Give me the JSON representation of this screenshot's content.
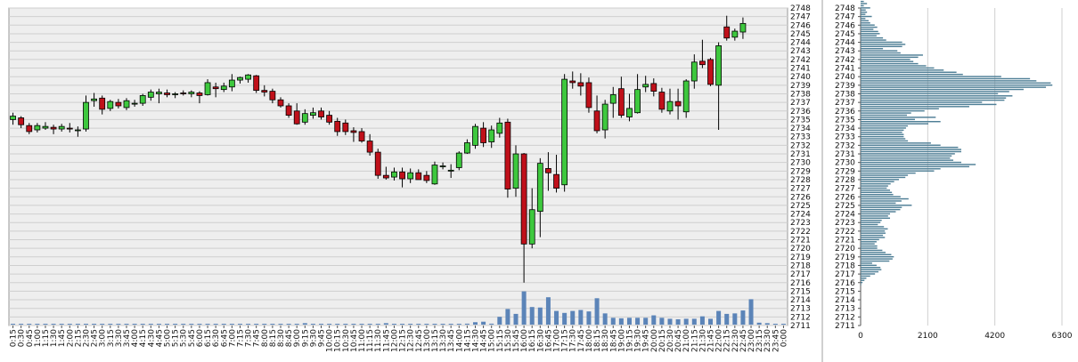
{
  "colors": {
    "up": "#3ec83e",
    "down": "#c0101a",
    "volume": "#5b84b8",
    "profile": "#4f7f96",
    "grid": "#cfcfcf",
    "plot_bg": "#eeeeee"
  },
  "chart_data": [
    {
      "type": "candlestick",
      "title": "",
      "xlabel": "",
      "ylabel": "",
      "ylim": [
        2711,
        2748
      ],
      "y_ticks": [
        2711,
        2712,
        2713,
        2714,
        2715,
        2716,
        2717,
        2718,
        2719,
        2720,
        2721,
        2722,
        2723,
        2724,
        2725,
        2726,
        2727,
        2728,
        2729,
        2730,
        2731,
        2732,
        2733,
        2734,
        2735,
        2736,
        2737,
        2738,
        2739,
        2740,
        2741,
        2742,
        2743,
        2744,
        2745,
        2746,
        2747,
        2748
      ],
      "grid": true,
      "x_tick_labels": [
        "0:15",
        "0:30",
        "0:45",
        "1:00",
        "1:15",
        "1:30",
        "1:45",
        "2:00",
        "2:15",
        "2:30",
        "2:45",
        "3:00",
        "3:15",
        "3:30",
        "3:45",
        "4:00",
        "4:15",
        "4:30",
        "4:45",
        "5:00",
        "5:15",
        "5:30",
        "5:45",
        "6:00",
        "6:15",
        "6:30",
        "6:45",
        "7:00",
        "7:15",
        "7:30",
        "7:45",
        "8:00",
        "8:15",
        "8:30",
        "8:45",
        "9:00",
        "9:15",
        "9:30",
        "9:45",
        "10:00",
        "10:15",
        "10:30",
        "10:45",
        "11:00",
        "11:15",
        "11:30",
        "11:45",
        "12:00",
        "12:15",
        "12:30",
        "12:45",
        "13:00",
        "13:15",
        "13:30",
        "13:45",
        "14:00",
        "14:15",
        "14:30",
        "14:45",
        "15:00",
        "15:15",
        "15:30",
        "15:45",
        "16:00",
        "16:15",
        "16:30",
        "16:45",
        "17:00",
        "17:15",
        "17:30",
        "17:45",
        "18:00",
        "18:15",
        "18:30",
        "18:45",
        "19:00",
        "19:15",
        "19:30",
        "19:45",
        "20:00",
        "20:15",
        "20:30",
        "20:45",
        "21:00",
        "21:15",
        "21:30",
        "21:45",
        "22:00",
        "22:15",
        "22:30",
        "22:45",
        "23:00",
        "23:15",
        "23:30",
        "23:45",
        "0:00"
      ],
      "candles": [
        {
          "o": 2735.0,
          "h": 2735.8,
          "l": 2734.4,
          "c": 2735.4
        },
        {
          "o": 2735.2,
          "h": 2735.4,
          "l": 2734.0,
          "c": 2734.4
        },
        {
          "o": 2734.3,
          "h": 2734.6,
          "l": 2733.3,
          "c": 2733.6
        },
        {
          "o": 2733.8,
          "h": 2734.6,
          "l": 2733.5,
          "c": 2734.3
        },
        {
          "o": 2734.0,
          "h": 2734.7,
          "l": 2733.8,
          "c": 2734.2
        },
        {
          "o": 2734.1,
          "h": 2734.4,
          "l": 2733.3,
          "c": 2733.9
        },
        {
          "o": 2733.9,
          "h": 2734.5,
          "l": 2733.6,
          "c": 2734.2
        },
        {
          "o": 2734.0,
          "h": 2734.6,
          "l": 2733.5,
          "c": 2733.9
        },
        {
          "o": 2733.8,
          "h": 2734.2,
          "l": 2733.0,
          "c": 2733.8
        },
        {
          "o": 2733.9,
          "h": 2737.8,
          "l": 2733.6,
          "c": 2737.0
        },
        {
          "o": 2737.2,
          "h": 2738.1,
          "l": 2736.5,
          "c": 2737.4
        },
        {
          "o": 2737.5,
          "h": 2737.8,
          "l": 2735.6,
          "c": 2736.2
        },
        {
          "o": 2736.3,
          "h": 2737.3,
          "l": 2736.0,
          "c": 2737.1
        },
        {
          "o": 2737.0,
          "h": 2737.4,
          "l": 2736.3,
          "c": 2736.6
        },
        {
          "o": 2736.4,
          "h": 2737.5,
          "l": 2736.1,
          "c": 2737.2
        },
        {
          "o": 2736.8,
          "h": 2737.3,
          "l": 2736.5,
          "c": 2736.9
        },
        {
          "o": 2736.9,
          "h": 2738.0,
          "l": 2736.6,
          "c": 2737.8
        },
        {
          "o": 2737.6,
          "h": 2738.5,
          "l": 2737.2,
          "c": 2738.2
        },
        {
          "o": 2738.0,
          "h": 2738.6,
          "l": 2736.9,
          "c": 2738.2
        },
        {
          "o": 2738.1,
          "h": 2738.5,
          "l": 2737.6,
          "c": 2737.9
        },
        {
          "o": 2737.9,
          "h": 2738.2,
          "l": 2737.5,
          "c": 2738.0
        },
        {
          "o": 2738.1,
          "h": 2738.4,
          "l": 2737.8,
          "c": 2738.0
        },
        {
          "o": 2738.0,
          "h": 2738.4,
          "l": 2737.6,
          "c": 2738.2
        },
        {
          "o": 2738.1,
          "h": 2738.3,
          "l": 2736.9,
          "c": 2737.8
        },
        {
          "o": 2737.9,
          "h": 2739.7,
          "l": 2737.8,
          "c": 2739.3
        },
        {
          "o": 2738.8,
          "h": 2739.3,
          "l": 2737.6,
          "c": 2738.6
        },
        {
          "o": 2738.5,
          "h": 2739.3,
          "l": 2738.2,
          "c": 2738.9
        },
        {
          "o": 2738.8,
          "h": 2740.3,
          "l": 2738.3,
          "c": 2739.6
        },
        {
          "o": 2739.6,
          "h": 2740.0,
          "l": 2739.2,
          "c": 2739.9
        },
        {
          "o": 2739.7,
          "h": 2740.3,
          "l": 2739.3,
          "c": 2740.2
        },
        {
          "o": 2740.1,
          "h": 2740.2,
          "l": 2738.1,
          "c": 2738.4
        },
        {
          "o": 2738.4,
          "h": 2739.0,
          "l": 2737.7,
          "c": 2738.2
        },
        {
          "o": 2738.3,
          "h": 2738.6,
          "l": 2736.9,
          "c": 2737.3
        },
        {
          "o": 2737.3,
          "h": 2737.6,
          "l": 2736.4,
          "c": 2736.6
        },
        {
          "o": 2736.6,
          "h": 2736.9,
          "l": 2735.2,
          "c": 2735.5
        },
        {
          "o": 2736.0,
          "h": 2736.9,
          "l": 2734.4,
          "c": 2734.5
        },
        {
          "o": 2734.7,
          "h": 2736.2,
          "l": 2734.4,
          "c": 2735.7
        },
        {
          "o": 2735.5,
          "h": 2736.4,
          "l": 2735.1,
          "c": 2735.8
        },
        {
          "o": 2736.0,
          "h": 2736.4,
          "l": 2735.0,
          "c": 2735.3
        },
        {
          "o": 2735.5,
          "h": 2736.0,
          "l": 2734.4,
          "c": 2734.7
        },
        {
          "o": 2734.8,
          "h": 2735.2,
          "l": 2733.1,
          "c": 2733.6
        },
        {
          "o": 2734.6,
          "h": 2735.0,
          "l": 2733.2,
          "c": 2733.6
        },
        {
          "o": 2733.7,
          "h": 2734.1,
          "l": 2732.4,
          "c": 2733.5
        },
        {
          "o": 2733.6,
          "h": 2734.0,
          "l": 2732.3,
          "c": 2732.5
        },
        {
          "o": 2732.5,
          "h": 2733.3,
          "l": 2730.8,
          "c": 2731.2
        },
        {
          "o": 2731.2,
          "h": 2731.6,
          "l": 2728.1,
          "c": 2728.5
        },
        {
          "o": 2728.5,
          "h": 2729.5,
          "l": 2728.0,
          "c": 2728.2
        },
        {
          "o": 2728.3,
          "h": 2729.4,
          "l": 2727.9,
          "c": 2728.9
        },
        {
          "o": 2728.9,
          "h": 2729.4,
          "l": 2727.1,
          "c": 2728.1
        },
        {
          "o": 2728.1,
          "h": 2729.3,
          "l": 2727.6,
          "c": 2728.8
        },
        {
          "o": 2728.8,
          "h": 2729.2,
          "l": 2728.0,
          "c": 2728.0
        },
        {
          "o": 2728.5,
          "h": 2729.0,
          "l": 2727.6,
          "c": 2727.9
        },
        {
          "o": 2727.5,
          "h": 2730.1,
          "l": 2727.4,
          "c": 2729.7
        },
        {
          "o": 2729.6,
          "h": 2730.0,
          "l": 2729.2,
          "c": 2729.6
        },
        {
          "o": 2729.0,
          "h": 2729.8,
          "l": 2728.2,
          "c": 2729.1
        },
        {
          "o": 2729.4,
          "h": 2731.3,
          "l": 2729.1,
          "c": 2731.1
        },
        {
          "o": 2731.1,
          "h": 2732.7,
          "l": 2731.0,
          "c": 2732.3
        },
        {
          "o": 2732.0,
          "h": 2734.5,
          "l": 2731.6,
          "c": 2734.2
        },
        {
          "o": 2734.0,
          "h": 2734.7,
          "l": 2731.8,
          "c": 2732.3
        },
        {
          "o": 2732.4,
          "h": 2734.3,
          "l": 2731.7,
          "c": 2733.8
        },
        {
          "o": 2733.4,
          "h": 2735.2,
          "l": 2732.9,
          "c": 2734.6
        },
        {
          "o": 2734.7,
          "h": 2735.1,
          "l": 2725.9,
          "c": 2726.9
        },
        {
          "o": 2727.0,
          "h": 2732.0,
          "l": 2726.0,
          "c": 2731.0
        },
        {
          "o": 2731.0,
          "h": 2731.1,
          "l": 2716.0,
          "c": 2720.5
        },
        {
          "o": 2720.5,
          "h": 2727.0,
          "l": 2720.0,
          "c": 2724.5
        },
        {
          "o": 2724.3,
          "h": 2730.5,
          "l": 2721.3,
          "c": 2729.9
        },
        {
          "o": 2729.3,
          "h": 2731.2,
          "l": 2726.7,
          "c": 2728.8
        },
        {
          "o": 2728.6,
          "h": 2730.9,
          "l": 2726.5,
          "c": 2727.0
        },
        {
          "o": 2727.4,
          "h": 2740.3,
          "l": 2726.6,
          "c": 2739.7
        },
        {
          "o": 2739.5,
          "h": 2740.6,
          "l": 2738.6,
          "c": 2739.3
        },
        {
          "o": 2739.3,
          "h": 2740.4,
          "l": 2737.8,
          "c": 2738.9
        },
        {
          "o": 2739.3,
          "h": 2739.9,
          "l": 2735.8,
          "c": 2736.4
        },
        {
          "o": 2736.0,
          "h": 2737.8,
          "l": 2733.4,
          "c": 2733.7
        },
        {
          "o": 2733.8,
          "h": 2737.3,
          "l": 2732.8,
          "c": 2736.8
        },
        {
          "o": 2736.9,
          "h": 2738.8,
          "l": 2735.2,
          "c": 2737.9
        },
        {
          "o": 2738.6,
          "h": 2740.0,
          "l": 2735.2,
          "c": 2735.5
        },
        {
          "o": 2735.3,
          "h": 2738.0,
          "l": 2734.8,
          "c": 2736.3
        },
        {
          "o": 2735.8,
          "h": 2740.3,
          "l": 2735.7,
          "c": 2738.5
        },
        {
          "o": 2738.8,
          "h": 2740.1,
          "l": 2738.2,
          "c": 2739.1
        },
        {
          "o": 2739.2,
          "h": 2739.8,
          "l": 2737.7,
          "c": 2738.3
        },
        {
          "o": 2738.2,
          "h": 2738.7,
          "l": 2735.8,
          "c": 2736.2
        },
        {
          "o": 2736.0,
          "h": 2738.6,
          "l": 2735.6,
          "c": 2737.1
        },
        {
          "o": 2737.1,
          "h": 2738.6,
          "l": 2735.0,
          "c": 2736.6
        },
        {
          "o": 2735.9,
          "h": 2739.7,
          "l": 2735.2,
          "c": 2739.5
        },
        {
          "o": 2739.5,
          "h": 2742.6,
          "l": 2738.6,
          "c": 2741.7
        },
        {
          "o": 2741.8,
          "h": 2744.3,
          "l": 2741.0,
          "c": 2741.4
        },
        {
          "o": 2742.0,
          "h": 2742.2,
          "l": 2738.9,
          "c": 2739.1
        },
        {
          "o": 2739.0,
          "h": 2744.0,
          "l": 2733.8,
          "c": 2743.6
        },
        {
          "o": 2745.8,
          "h": 2747.1,
          "l": 2744.2,
          "c": 2744.5
        },
        {
          "o": 2744.6,
          "h": 2745.6,
          "l": 2744.2,
          "c": 2745.3
        },
        {
          "o": 2745.2,
          "h": 2746.9,
          "l": 2744.4,
          "c": 2746.2
        }
      ],
      "volume": [
        7,
        7,
        5,
        5,
        4,
        5,
        4,
        4,
        4,
        8,
        6,
        6,
        6,
        5,
        5,
        4,
        5,
        6,
        5,
        5,
        5,
        5,
        5,
        6,
        6,
        6,
        6,
        6,
        7,
        5,
        6,
        6,
        5,
        5,
        5,
        5,
        15,
        5,
        5,
        4,
        4,
        4,
        4,
        4,
        4,
        4,
        15,
        6,
        4,
        4,
        4,
        5,
        6,
        4,
        5,
        5,
        10,
        25,
        30,
        10,
        80,
        160,
        110,
        340,
        180,
        175,
        280,
        140,
        120,
        140,
        150,
        135,
        270,
        115,
        70,
        65,
        70,
        70,
        70,
        95,
        70,
        60,
        55,
        60,
        60,
        85,
        60,
        140,
        110,
        115,
        145,
        260,
        20,
        15,
        3,
        2
      ]
    },
    {
      "type": "bar",
      "orientation": "horizontal",
      "title": "",
      "xlabel": "",
      "ylabel": "",
      "xlim": [
        0,
        6300
      ],
      "x_ticks": [
        0,
        2100,
        4200,
        6300
      ],
      "y_ticks": [
        2711,
        2712,
        2713,
        2714,
        2715,
        2716,
        2717,
        2718,
        2719,
        2720,
        2721,
        2722,
        2723,
        2724,
        2725,
        2726,
        2727,
        2728,
        2729,
        2730,
        2731,
        2732,
        2733,
        2734,
        2735,
        2736,
        2737,
        2738,
        2739,
        2740,
        2741,
        2742,
        2743,
        2744,
        2745,
        2746,
        2747,
        2748
      ],
      "ylim": [
        2711,
        2748
      ],
      "grid": true,
      "bin_size": 0.25,
      "price_start": 2715.75,
      "values": [
        20,
        60,
        120,
        180,
        300,
        450,
        560,
        650,
        620,
        500,
        360,
        900,
        1000,
        1040,
        960,
        780,
        680,
        520,
        520,
        440,
        500,
        580,
        760,
        700,
        780,
        760,
        850,
        730,
        540,
        620,
        660,
        920,
        860,
        920,
        1100,
        1240,
        1290,
        1600,
        1100,
        1280,
        1500,
        1250,
        1020,
        980,
        920,
        820,
        860,
        940,
        1050,
        1200,
        1400,
        1480,
        1720,
        2300,
        2500,
        3400,
        3600,
        3150,
        2900,
        2800,
        2850,
        2950,
        3150,
        3150,
        3050,
        2500,
        2200,
        1480,
        1400,
        1350,
        1350,
        1300,
        1350,
        1420,
        1480,
        2120,
        2500,
        1700,
        2350,
        1450,
        1580,
        2000,
        2450,
        3400,
        4250,
        3800,
        4500,
        4550,
        4750,
        4300,
        4650,
        5100,
        5800,
        6000,
        5950,
        5500,
        5300,
        4400,
        3200,
        3000,
        2600,
        2300,
        2050,
        1800,
        1650,
        1550,
        1800,
        1950,
        1250,
        1150,
        700,
        1300,
        1400,
        1300,
        800,
        700,
        500,
        600,
        550,
        400,
        520,
        440,
        300,
        250,
        150,
        350,
        150,
        200,
        160,
        300,
        100,
        200,
        100,
        60
      ]
    }
  ]
}
